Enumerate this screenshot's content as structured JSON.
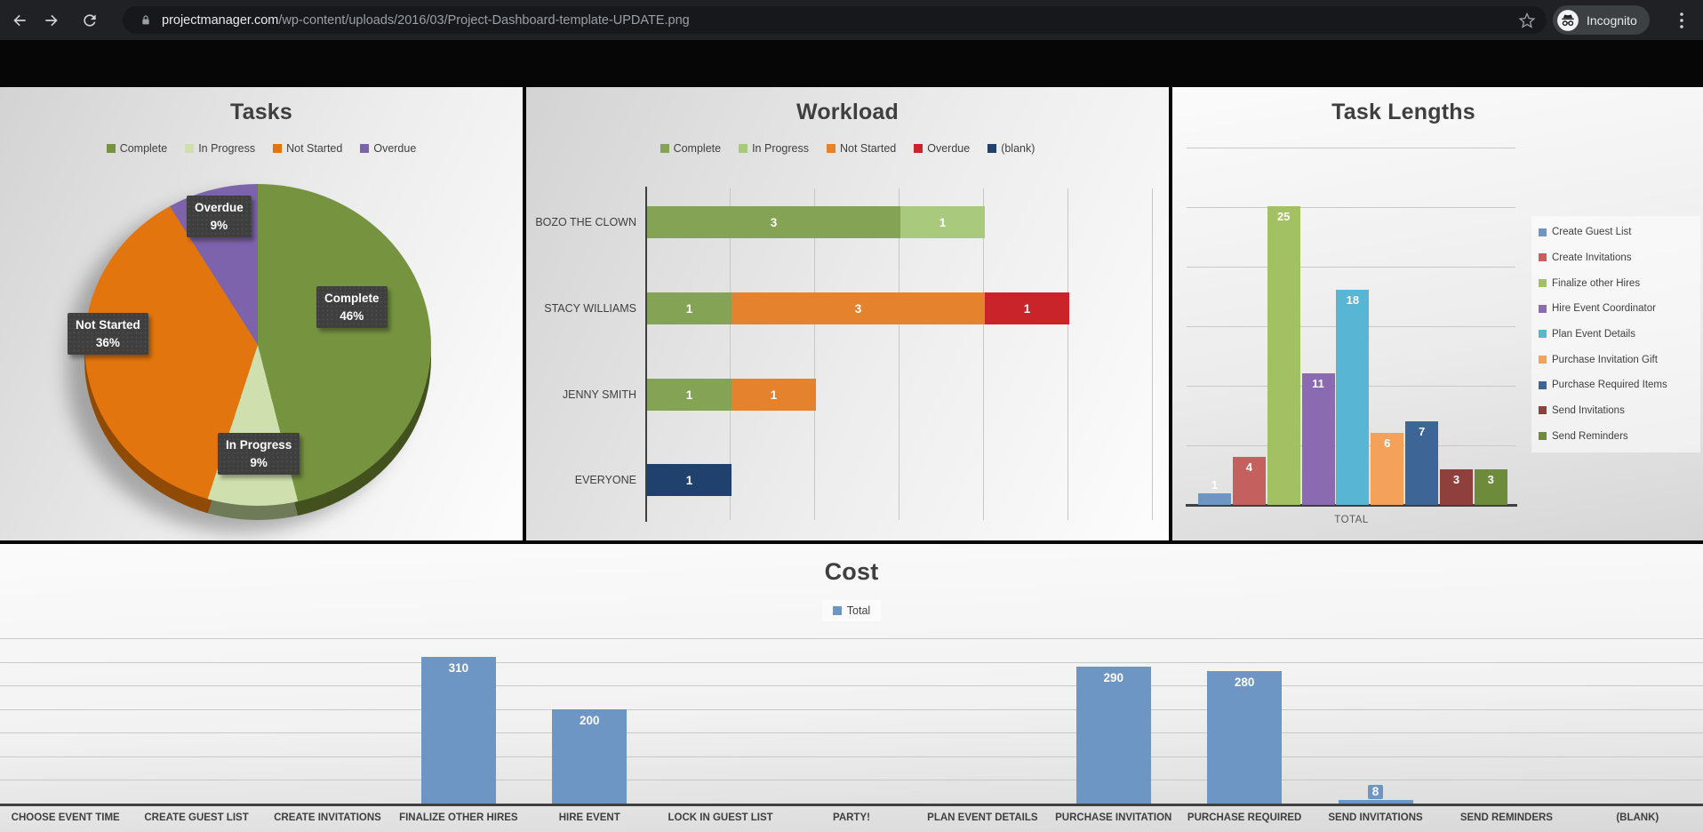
{
  "browser": {
    "url_domain": "projectmanager.com",
    "url_path": "/wp-content/uploads/2016/03/Project-Dashboard-template-UPDATE.png",
    "incognito_label": "Incognito"
  },
  "chart_data": [
    {
      "type": "pie",
      "title": "Tasks",
      "legend_position": "top",
      "slices": [
        {
          "label": "Complete",
          "pct": 46,
          "pct_label": "46%",
          "color": "#769440",
          "rim": "#42511d"
        },
        {
          "label": "In Progress",
          "pct": 9,
          "pct_label": "9%",
          "color": "#cfe0ae",
          "rim": "#6f7a58"
        },
        {
          "label": "Not Started",
          "pct": 36,
          "pct_label": "36%",
          "color": "#e2750e",
          "rim": "#8f4a06"
        },
        {
          "label": "Overdue",
          "pct": 9,
          "pct_label": "9%",
          "color": "#7d63ac",
          "rim": "#4e3d75"
        }
      ]
    },
    {
      "type": "bar-horizontal-stacked",
      "title": "Workload",
      "xlim": [
        0,
        6
      ],
      "grid_step": 1,
      "legend_position": "top",
      "series": [
        {
          "name": "Complete",
          "color": "#84a355"
        },
        {
          "name": "In Progress",
          "color": "#a9c97c"
        },
        {
          "name": "Not Started",
          "color": "#e5822d"
        },
        {
          "name": "Overdue",
          "color": "#c9242a"
        },
        {
          "name": "(blank)",
          "color": "#20406e"
        }
      ],
      "rows": [
        {
          "label": "BOZO THE CLOWN",
          "segments": [
            {
              "series": "Complete",
              "value": 3
            },
            {
              "series": "In Progress",
              "value": 1
            }
          ]
        },
        {
          "label": "STACY WILLIAMS",
          "segments": [
            {
              "series": "Complete",
              "value": 1
            },
            {
              "series": "Not Started",
              "value": 3
            },
            {
              "series": "Overdue",
              "value": 1
            }
          ]
        },
        {
          "label": "JENNY SMITH",
          "segments": [
            {
              "series": "Complete",
              "value": 1
            },
            {
              "series": "Not Started",
              "value": 1
            }
          ]
        },
        {
          "label": "EVERYONE",
          "segments": [
            {
              "series": "(blank)",
              "value": 1
            }
          ]
        }
      ]
    },
    {
      "type": "bar",
      "title": "Task Lengths",
      "xlabel": "TOTAL",
      "ylim": [
        0,
        30
      ],
      "grid_step": 5,
      "legend_position": "right",
      "items": [
        {
          "name": "Create Guest List",
          "value": 1,
          "color": "#6d96c5"
        },
        {
          "name": "Create Invitations",
          "value": 4,
          "color": "#c4605d"
        },
        {
          "name": "Finalize other Hires",
          "value": 25,
          "color": "#a2c162"
        },
        {
          "name": "Hire Event Coordinator",
          "value": 11,
          "color": "#8a6bb1"
        },
        {
          "name": "Plan Event Details",
          "value": 18,
          "color": "#58b6d4"
        },
        {
          "name": "Purchase Invitation Gift",
          "value": 6,
          "color": "#f4a259"
        },
        {
          "name": "Purchase Required Items",
          "value": 7,
          "color": "#3d6596"
        },
        {
          "name": "Send Invitations",
          "value": 3,
          "color": "#8f403c"
        },
        {
          "name": "Send Reminders",
          "value": 3,
          "color": "#6e8a3b"
        }
      ]
    },
    {
      "type": "bar",
      "title": "Cost",
      "ylim": [
        0,
        350
      ],
      "grid_step": 50,
      "bar_color": "#6d96c5",
      "legend": [
        {
          "name": "Total",
          "color": "#6d96c5"
        }
      ],
      "categories": [
        "CHOOSE EVENT TIME",
        "CREATE GUEST LIST",
        "CREATE INVITATIONS",
        "FINALIZE OTHER HIRES",
        "HIRE EVENT",
        "LOCK IN GUEST LIST",
        "PARTY!",
        "PLAN EVENT DETAILS",
        "PURCHASE INVITATION",
        "PURCHASE REQUIRED",
        "SEND INVITATIONS",
        "SEND REMINDERS",
        "(BLANK)"
      ],
      "values": [
        0,
        0,
        0,
        310,
        200,
        0,
        0,
        0,
        290,
        280,
        8,
        0,
        0
      ]
    }
  ]
}
